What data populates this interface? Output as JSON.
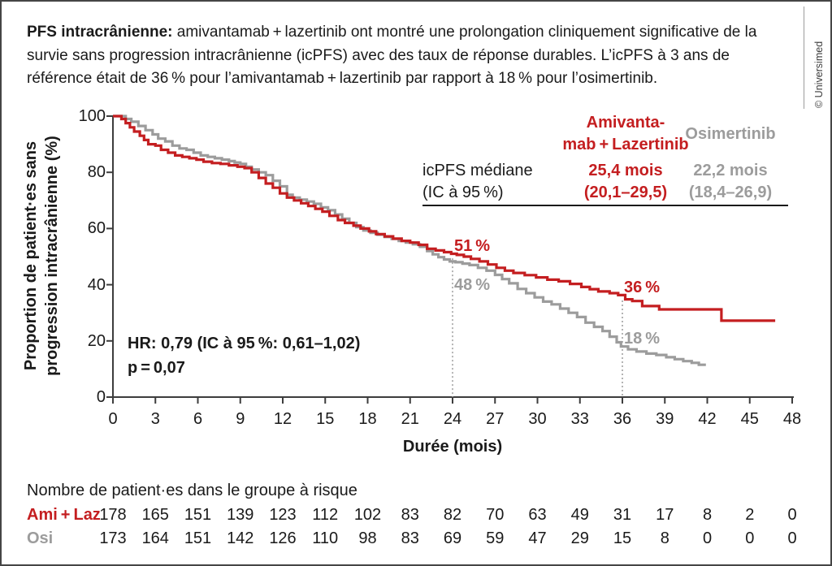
{
  "figure": {
    "copyright": "© Universimed",
    "title_lead": "PFS intracrânienne:",
    "title_rest": "amivantamab + lazertinib ont montré une prolongation cliniquement significative de la survie sans progression intracrânienne (icPFS) avec des taux de réponse durables. L’icPFS à 3 ans de référence était de 36 % pour l’amivantamab + lazertinib par rapport à 18 % pour l’osimertinib."
  },
  "colors": {
    "ami_laz": "#c41e20",
    "osi": "#9c9c9c",
    "axis": "#3d3d3d",
    "dashed": "#9c9c9c",
    "text": "#1a1a1a"
  },
  "chart_data": {
    "type": "line",
    "subtype": "kaplan-meier-step",
    "xlabel": "Durée (mois)",
    "ylabel_line1": "Proportion de patient·es sans",
    "ylabel_line2": "progression intracrânienne (%)",
    "xlim": [
      0,
      48
    ],
    "ylim": [
      0,
      100
    ],
    "x_ticks": [
      0,
      3,
      6,
      9,
      12,
      15,
      18,
      21,
      24,
      27,
      30,
      33,
      36,
      39,
      42,
      45,
      48
    ],
    "y_ticks": [
      0,
      20,
      40,
      60,
      80,
      100
    ],
    "series": [
      {
        "name": "Osimertinib",
        "color_key": "osi",
        "points": [
          [
            0,
            100
          ],
          [
            0.9,
            99
          ],
          [
            1.3,
            98
          ],
          [
            1.8,
            96.5
          ],
          [
            2.3,
            95
          ],
          [
            2.8,
            93.5
          ],
          [
            3.2,
            92
          ],
          [
            3.7,
            91
          ],
          [
            4.2,
            89.5
          ],
          [
            4.7,
            88.5
          ],
          [
            5.2,
            88
          ],
          [
            5.7,
            87
          ],
          [
            6.2,
            86
          ],
          [
            6.7,
            85.5
          ],
          [
            7.2,
            85
          ],
          [
            7.7,
            84.5
          ],
          [
            8.2,
            84
          ],
          [
            8.6,
            83.5
          ],
          [
            9,
            83
          ],
          [
            9.4,
            82
          ],
          [
            9.8,
            81
          ],
          [
            10.3,
            80
          ],
          [
            10.8,
            79
          ],
          [
            11.3,
            77
          ],
          [
            11.8,
            75
          ],
          [
            12.3,
            72
          ],
          [
            12.7,
            71
          ],
          [
            13.2,
            70.3
          ],
          [
            13.7,
            69.6
          ],
          [
            14.2,
            68.8
          ],
          [
            14.7,
            67.5
          ],
          [
            15.2,
            66.5
          ],
          [
            15.7,
            65
          ],
          [
            16.2,
            63.5
          ],
          [
            16.7,
            62
          ],
          [
            17.2,
            60.5
          ],
          [
            17.7,
            59.3
          ],
          [
            18.2,
            58.5
          ],
          [
            18.7,
            57.8
          ],
          [
            19.2,
            57
          ],
          [
            19.7,
            56.3
          ],
          [
            20.2,
            55.6
          ],
          [
            20.7,
            55
          ],
          [
            21.2,
            54.4
          ],
          [
            21.7,
            53.5
          ],
          [
            22.2,
            52
          ],
          [
            22.6,
            50.8
          ],
          [
            23,
            49.8
          ],
          [
            23.4,
            49
          ],
          [
            23.8,
            48.3
          ],
          [
            24.2,
            48
          ],
          [
            24.7,
            47.5
          ],
          [
            25.2,
            47
          ],
          [
            25.8,
            46
          ],
          [
            26.4,
            45
          ],
          [
            27,
            43.5
          ],
          [
            27.5,
            42
          ],
          [
            28,
            40.5
          ],
          [
            28.6,
            38.5
          ],
          [
            29.2,
            37
          ],
          [
            29.8,
            35.5
          ],
          [
            30.4,
            34
          ],
          [
            31,
            33
          ],
          [
            31.6,
            31.5
          ],
          [
            32.2,
            30
          ],
          [
            32.8,
            28.5
          ],
          [
            33.4,
            26.5
          ],
          [
            34,
            25
          ],
          [
            34.6,
            23.5
          ],
          [
            35.1,
            21.5
          ],
          [
            35.6,
            19.5
          ],
          [
            35.9,
            18
          ],
          [
            36.4,
            17
          ],
          [
            37,
            16.2
          ],
          [
            37.7,
            15.5
          ],
          [
            38.4,
            15
          ],
          [
            39.1,
            14.2
          ],
          [
            39.7,
            13.5
          ],
          [
            40.3,
            12.8
          ],
          [
            40.9,
            12.2
          ],
          [
            41.4,
            11.5
          ],
          [
            41.9,
            11.5
          ]
        ]
      },
      {
        "name": "Amivantamab + Lazertinib",
        "color_key": "ami_laz",
        "points": [
          [
            0,
            100
          ],
          [
            0.6,
            99
          ],
          [
            0.9,
            97.5
          ],
          [
            1.2,
            96
          ],
          [
            1.5,
            94.5
          ],
          [
            1.9,
            93
          ],
          [
            2.2,
            91.5
          ],
          [
            2.5,
            90
          ],
          [
            3,
            89.5
          ],
          [
            3.4,
            88
          ],
          [
            3.9,
            87
          ],
          [
            4.4,
            86
          ],
          [
            4.9,
            85.5
          ],
          [
            5.4,
            85
          ],
          [
            5.9,
            84.5
          ],
          [
            6.4,
            83.8
          ],
          [
            7,
            83.3
          ],
          [
            7.6,
            83
          ],
          [
            8.2,
            82.5
          ],
          [
            8.8,
            82
          ],
          [
            9.3,
            81.5
          ],
          [
            9.8,
            80
          ],
          [
            10.3,
            78
          ],
          [
            10.8,
            76
          ],
          [
            11.3,
            74.5
          ],
          [
            11.8,
            72.5
          ],
          [
            12.3,
            71
          ],
          [
            12.8,
            70
          ],
          [
            13.3,
            69
          ],
          [
            13.8,
            68
          ],
          [
            14.3,
            67
          ],
          [
            14.8,
            66
          ],
          [
            15.3,
            64.5
          ],
          [
            15.9,
            63
          ],
          [
            16.4,
            62
          ],
          [
            17,
            61
          ],
          [
            17.5,
            60
          ],
          [
            18.1,
            59
          ],
          [
            18.6,
            58
          ],
          [
            19.2,
            57.2
          ],
          [
            19.8,
            56.4
          ],
          [
            20.4,
            55.6
          ],
          [
            21,
            55
          ],
          [
            21.6,
            54.2
          ],
          [
            22.2,
            52.8
          ],
          [
            22.8,
            52.2
          ],
          [
            23.4,
            51.6
          ],
          [
            23.9,
            51
          ],
          [
            24.3,
            50.6
          ],
          [
            24.8,
            50
          ],
          [
            25.3,
            49.2
          ],
          [
            25.9,
            48.3
          ],
          [
            26.5,
            47.2
          ],
          [
            27.1,
            46
          ],
          [
            27.7,
            45
          ],
          [
            28.3,
            44.2
          ],
          [
            29.1,
            43.4
          ],
          [
            29.9,
            42.6
          ],
          [
            30.7,
            41.8
          ],
          [
            31.5,
            41.2
          ],
          [
            32.3,
            40.3
          ],
          [
            33.1,
            39.2
          ],
          [
            33.7,
            38.4
          ],
          [
            34.3,
            37.6
          ],
          [
            35.1,
            37
          ],
          [
            35.7,
            36.3
          ],
          [
            36.2,
            34.8
          ],
          [
            36.7,
            34.2
          ],
          [
            37.4,
            32.4
          ],
          [
            38.6,
            31.2
          ],
          [
            43,
            27.2
          ],
          [
            46.8,
            27.2
          ]
        ]
      }
    ],
    "annotations": [
      {
        "label": "51 %",
        "month": 24,
        "pct": 51,
        "series": "ami_laz",
        "placement": "above"
      },
      {
        "label": "48 %",
        "month": 24,
        "pct": 48,
        "series": "osi",
        "placement": "below"
      },
      {
        "label": "36 %",
        "month": 36,
        "pct": 36,
        "series": "ami_laz",
        "placement": "above"
      },
      {
        "label": "18 %",
        "month": 36,
        "pct": 18,
        "series": "osi",
        "placement": "above"
      }
    ],
    "reference_lines": [
      {
        "month": 24,
        "from_pct": 49.4
      },
      {
        "month": 36,
        "from_pct": 34.4
      }
    ]
  },
  "median_table": {
    "row_label_line1": "icPFS médiane",
    "row_label_line2": "(IC à 95 %)",
    "columns": [
      {
        "header_line1": "Amivanta-",
        "header_line2": "mab + Lazertinib",
        "value": "25,4 mois",
        "ci": "(20,1–29,5)",
        "color_key": "ami_laz"
      },
      {
        "header_line1": "Osimertinib",
        "header_line2": "",
        "value": "22,2 mois",
        "ci": "(18,4–26,9)",
        "color_key": "osi"
      }
    ]
  },
  "hr_note": {
    "line1": "HR: 0,79 (IC à 95 %: 0,61–1,02)",
    "line2": "p = 0,07"
  },
  "at_risk": {
    "title": "Nombre de patient·es dans le groupe à risque",
    "rows": [
      {
        "label": "Ami + Laz",
        "color_key": "ami_laz",
        "values": [
          178,
          165,
          151,
          139,
          123,
          112,
          102,
          83,
          82,
          70,
          63,
          49,
          31,
          17,
          8,
          2,
          0
        ]
      },
      {
        "label": "Osi",
        "color_key": "osi",
        "values": [
          173,
          164,
          151,
          142,
          126,
          110,
          98,
          83,
          69,
          59,
          47,
          29,
          15,
          8,
          0,
          0,
          0
        ]
      }
    ]
  }
}
